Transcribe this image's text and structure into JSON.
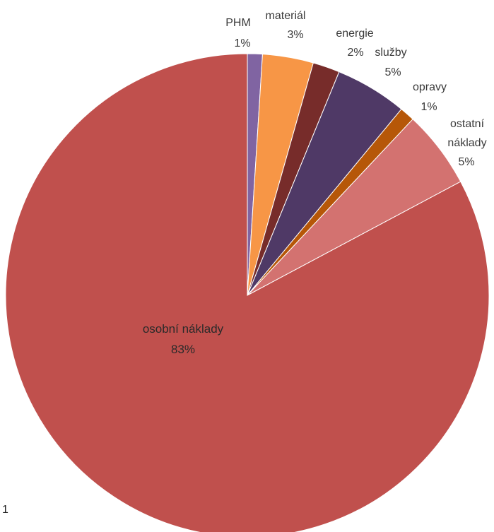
{
  "chart_data": {
    "type": "pie",
    "start_angle_deg": 0,
    "direction": "clockwise",
    "slices": [
      {
        "label": "PHM",
        "percent_label": "1%",
        "value": 1.0,
        "color": "#8064a2"
      },
      {
        "label": "materiál",
        "percent_label": "3%",
        "value": 3.4,
        "color": "#f79646"
      },
      {
        "label": "energie",
        "percent_label": "2%",
        "value": 1.8,
        "color": "#772c2a"
      },
      {
        "label": "služby",
        "percent_label": "5%",
        "value": 4.8,
        "color": "#4f3966"
      },
      {
        "label": "opravy",
        "percent_label": "1%",
        "value": 1.0,
        "color": "#b65708"
      },
      {
        "label": "ostatní náklady",
        "percent_label": "5%",
        "value": 5.2,
        "color": "#d37270"
      },
      {
        "label": "osobní náklady",
        "percent_label": "83%",
        "value": 82.8,
        "color": "#c0504d"
      }
    ]
  },
  "page_number": "1"
}
